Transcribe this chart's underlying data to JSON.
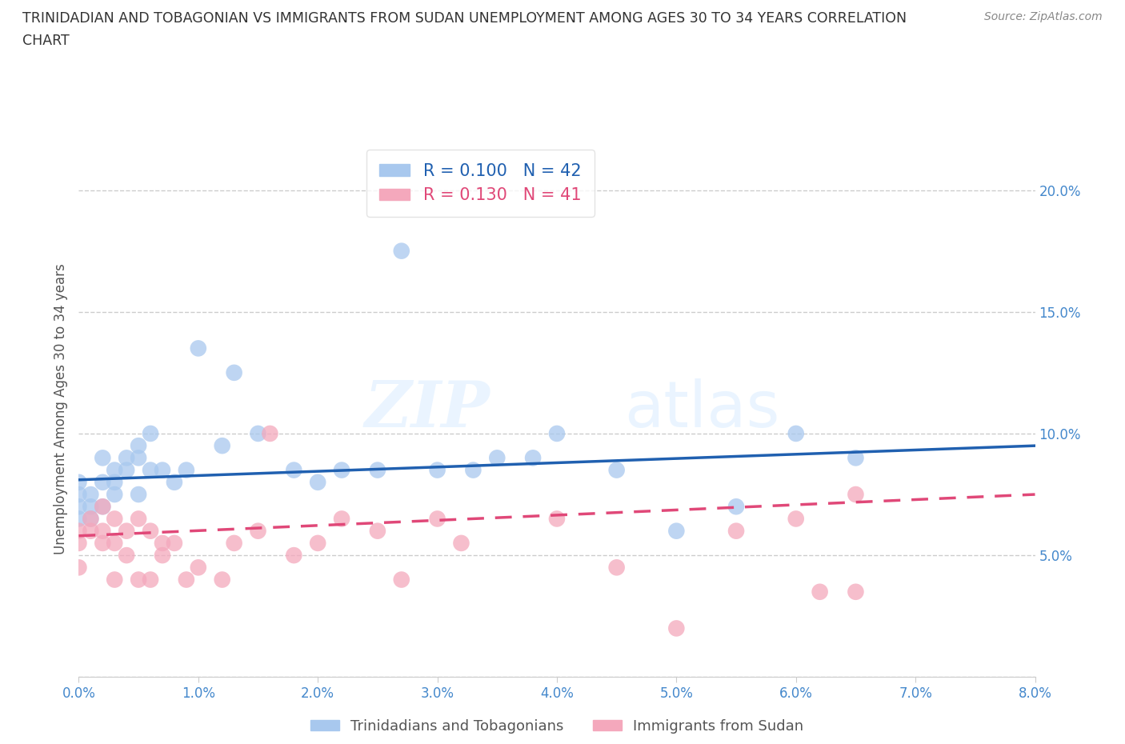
{
  "title_line1": "TRINIDADIAN AND TOBAGONIAN VS IMMIGRANTS FROM SUDAN UNEMPLOYMENT AMONG AGES 30 TO 34 YEARS CORRELATION",
  "title_line2": "CHART",
  "source_text": "Source: ZipAtlas.com",
  "ylabel": "Unemployment Among Ages 30 to 34 years",
  "xlim": [
    0.0,
    0.08
  ],
  "ylim": [
    0.0,
    0.22
  ],
  "xticks": [
    0.0,
    0.01,
    0.02,
    0.03,
    0.04,
    0.05,
    0.06,
    0.07,
    0.08
  ],
  "xticklabels": [
    "0.0%",
    "1.0%",
    "2.0%",
    "3.0%",
    "4.0%",
    "5.0%",
    "6.0%",
    "7.0%",
    "8.0%"
  ],
  "yticks": [
    0.0,
    0.05,
    0.1,
    0.15,
    0.2
  ],
  "yticklabels": [
    "",
    "5.0%",
    "10.0%",
    "15.0%",
    "20.0%"
  ],
  "blue_color": "#A8C8EE",
  "pink_color": "#F4A8BC",
  "blue_line_color": "#2060B0",
  "pink_line_color": "#E04878",
  "bottom_legend_blue": "Trinidadians and Tobagonians",
  "bottom_legend_pink": "Immigrants from Sudan",
  "watermark_zip": "ZIP",
  "watermark_atlas": "atlas",
  "blue_x": [
    0.0,
    0.0,
    0.0,
    0.0,
    0.001,
    0.001,
    0.001,
    0.002,
    0.002,
    0.002,
    0.003,
    0.003,
    0.003,
    0.004,
    0.004,
    0.005,
    0.005,
    0.005,
    0.006,
    0.006,
    0.007,
    0.008,
    0.009,
    0.01,
    0.012,
    0.013,
    0.015,
    0.018,
    0.02,
    0.022,
    0.025,
    0.027,
    0.03,
    0.033,
    0.035,
    0.038,
    0.04,
    0.045,
    0.05,
    0.055,
    0.06,
    0.065
  ],
  "blue_y": [
    0.065,
    0.07,
    0.075,
    0.08,
    0.065,
    0.07,
    0.075,
    0.07,
    0.08,
    0.09,
    0.075,
    0.08,
    0.085,
    0.085,
    0.09,
    0.075,
    0.09,
    0.095,
    0.085,
    0.1,
    0.085,
    0.08,
    0.085,
    0.135,
    0.095,
    0.125,
    0.1,
    0.085,
    0.08,
    0.085,
    0.085,
    0.175,
    0.085,
    0.085,
    0.09,
    0.09,
    0.1,
    0.085,
    0.06,
    0.07,
    0.1,
    0.09
  ],
  "pink_x": [
    0.0,
    0.0,
    0.0,
    0.001,
    0.001,
    0.002,
    0.002,
    0.002,
    0.003,
    0.003,
    0.003,
    0.004,
    0.004,
    0.005,
    0.005,
    0.006,
    0.006,
    0.007,
    0.007,
    0.008,
    0.009,
    0.01,
    0.012,
    0.013,
    0.015,
    0.016,
    0.018,
    0.02,
    0.022,
    0.025,
    0.027,
    0.03,
    0.032,
    0.04,
    0.045,
    0.05,
    0.055,
    0.06,
    0.062,
    0.065,
    0.065
  ],
  "pink_y": [
    0.045,
    0.055,
    0.06,
    0.06,
    0.065,
    0.055,
    0.06,
    0.07,
    0.04,
    0.055,
    0.065,
    0.05,
    0.06,
    0.065,
    0.04,
    0.04,
    0.06,
    0.055,
    0.05,
    0.055,
    0.04,
    0.045,
    0.04,
    0.055,
    0.06,
    0.1,
    0.05,
    0.055,
    0.065,
    0.06,
    0.04,
    0.065,
    0.055,
    0.065,
    0.045,
    0.02,
    0.06,
    0.065,
    0.035,
    0.035,
    0.075
  ],
  "blue_trend_x0": 0.0,
  "blue_trend_y0": 0.081,
  "blue_trend_x1": 0.08,
  "blue_trend_y1": 0.095,
  "pink_trend_x0": 0.0,
  "pink_trend_y0": 0.058,
  "pink_trend_x1": 0.08,
  "pink_trend_y1": 0.075
}
